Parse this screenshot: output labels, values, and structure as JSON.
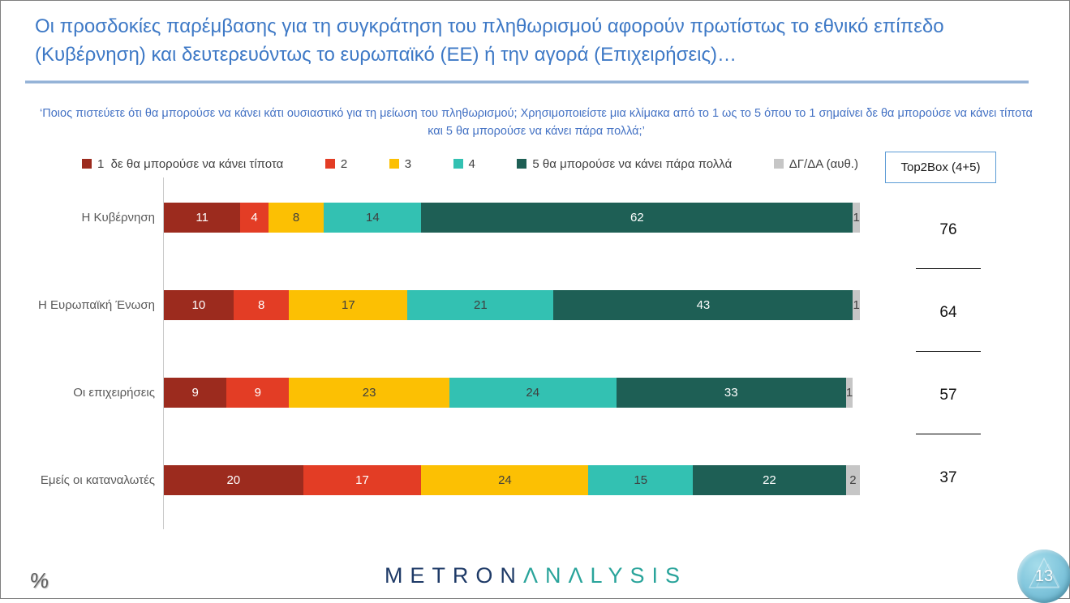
{
  "slide": {
    "title": "Οι προσδοκίες παρέμβασης για τη συγκράτηση του πληθωρισμού αφορούν πρωτίστως το εθνικό επίπεδο (Κυβέρνηση) και δευτερευόντως το ευρωπαϊκό (ΕΕ) ή την αγορά (Επιχειρήσεις)…",
    "subtitle": "‘Ποιος πιστεύετε ότι θα μπορούσε να κάνει κάτι ουσιαστικό για τη μείωση του πληθωρισμού; Χρησιμοποιείστε μια κλίμακα από το 1 ως το 5 όπου το 1 σημαίνει δε θα μπορούσε να κάνει τίποτα και 5 θα μπορούσε να κάνει πάρα πολλά;’",
    "page_number": "13",
    "percent_icon": "%"
  },
  "logo": {
    "part1": "METRON",
    "part2": "ΛNΛLYSIS"
  },
  "top2box": {
    "label": "Top2Box (4+5)",
    "values": [
      "76",
      "64",
      "57",
      "37"
    ]
  },
  "colors": {
    "title_blue": "#3e79c6",
    "rule_blue": "#95b3d7",
    "top2box_border": "#5b9bd5",
    "category_label_gray": "#595959",
    "legend_text_gray": "#404040",
    "logo_navy": "#1e3a67",
    "logo_teal": "#2aa49b",
    "page_circle_blue": "#7ec4db"
  },
  "chart_data": {
    "type": "bar",
    "orientation": "horizontal",
    "stacked": true,
    "xlim": [
      0,
      100
    ],
    "grid": false,
    "legend_position": "top",
    "categories": [
      "Η Κυβέρνηση",
      "Η Ευρωπαϊκή Ένωση",
      "Οι επιχειρήσεις",
      "Εμείς οι καταναλωτές"
    ],
    "series": [
      {
        "name": "1  δε θα μπορούσε να κάνει τίποτα",
        "color": "#9c2b1e",
        "label_color": "#ffffff",
        "values": [
          11,
          10,
          9,
          20
        ]
      },
      {
        "name": "2",
        "color": "#e33d25",
        "label_color": "#ffffff",
        "values": [
          4,
          8,
          9,
          17
        ]
      },
      {
        "name": "3",
        "color": "#fcc003",
        "label_color": "#3f3f3f",
        "values": [
          8,
          17,
          23,
          24
        ]
      },
      {
        "name": "4",
        "color": "#33c1b2",
        "label_color": "#3f3f3f",
        "values": [
          14,
          21,
          24,
          15
        ]
      },
      {
        "name": "5 θα μπορούσε να κάνει πάρα πολλά",
        "color": "#1e5f55",
        "label_color": "#ffffff",
        "values": [
          62,
          43,
          33,
          22
        ]
      },
      {
        "name": "ΔΓ/ΔΑ (αυθ.)",
        "color": "#c6c6c6",
        "label_color": "#3f3f3f",
        "values": [
          1,
          1,
          1,
          2
        ]
      }
    ],
    "top2box_values": [
      76,
      64,
      57,
      37
    ]
  }
}
